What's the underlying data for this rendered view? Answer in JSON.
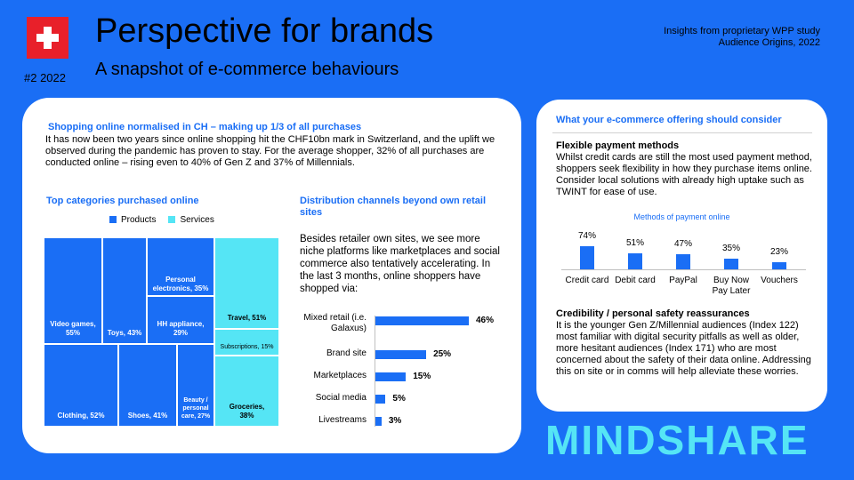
{
  "header": {
    "issue": "#2 2022",
    "title": "Perspective for brands",
    "subtitle": "A snapshot of e-commerce behaviours",
    "insights_line1": "Insights from proprietary WPP study",
    "insights_line2": "Audience Origins, 2022",
    "flag_icon": "swiss-flag-icon"
  },
  "left": {
    "heading": "Shopping  online normalised in CH – making up 1/3 of all purchases",
    "paragraph": "It has now been two years since online shopping hit the CHF10bn mark in Switzerland, and the uplift we observed during the pandemic has proven to stay.  For the average shopper, 32% of all purchases are conducted online – rising even to 40% of Gen Z and 37% of Millennials.",
    "categories_heading": "Top categories purchased online",
    "legend_products": "Products",
    "legend_services": "Services",
    "distribution_heading": "Distribution  channels beyond own retail sites",
    "distribution_paragraph": "Besides retailer own sites, we see more niche platforms like marketplaces and social commerce also tentatively accelerating. In the last 3 months, online shoppers have shopped via:"
  },
  "treemap": {
    "tiles": [
      {
        "label": "Video games, 55%",
        "type": "products"
      },
      {
        "label": "Toys, 43%",
        "type": "products"
      },
      {
        "label": "Personal electronics, 35%",
        "type": "products"
      },
      {
        "label": "HH appliance, 29%",
        "type": "products"
      },
      {
        "label": "Travel, 51%",
        "type": "services"
      },
      {
        "label": "Subscriptions, 15%",
        "type": "services"
      },
      {
        "label": "Clothing, 52%",
        "type": "products"
      },
      {
        "label": "Shoes, 41%",
        "type": "products"
      },
      {
        "label": "Beauty / personal care, 27%",
        "type": "products"
      },
      {
        "label": "Groceries, 38%",
        "type": "services"
      }
    ]
  },
  "chart_data": [
    {
      "type": "bar",
      "orientation": "horizontal",
      "categories": [
        "Mixed retail (i.e. Galaxus)",
        "Brand site",
        "Marketplaces",
        "Social media",
        "Livestreams"
      ],
      "values": [
        46,
        25,
        15,
        5,
        3
      ],
      "value_labels": [
        "46%",
        "25%",
        "15%",
        "5%",
        "3%"
      ]
    },
    {
      "type": "bar",
      "title": "Methods of payment online",
      "categories": [
        "Credit card",
        "Debit card",
        "PayPal",
        "Buy Now Pay Later",
        "Vouchers"
      ],
      "values": [
        74,
        51,
        47,
        35,
        23
      ],
      "value_labels": [
        "74%",
        "51%",
        "47%",
        "35%",
        "23%"
      ]
    }
  ],
  "right": {
    "heading": "What your e-commerce offering should consider",
    "sub1": "Flexible payment methods",
    "para1": "Whilst credit cards are still the most used payment method, shoppers seek flexibility in how they purchase items online. Consider local solutions with already high uptake such as TWINT for ease of use.",
    "sub2": "Credibility  / personal safety reassurances",
    "para2": "It is the younger Gen Z/Millennial audiences (Index 122) most familiar with digital security pitfalls as well as older, more hesitant audiences (Index 171) who are most concerned about the safety of their data online. Addressing this on site or in comms will help alleviate these worries."
  },
  "footer": {
    "logo": "MINDSHARE"
  },
  "colors": {
    "background": "#1a6ef5",
    "products": "#1a6ef5",
    "services": "#55e5f5",
    "logo": "#55e5f5",
    "flag": "#e8202a"
  }
}
